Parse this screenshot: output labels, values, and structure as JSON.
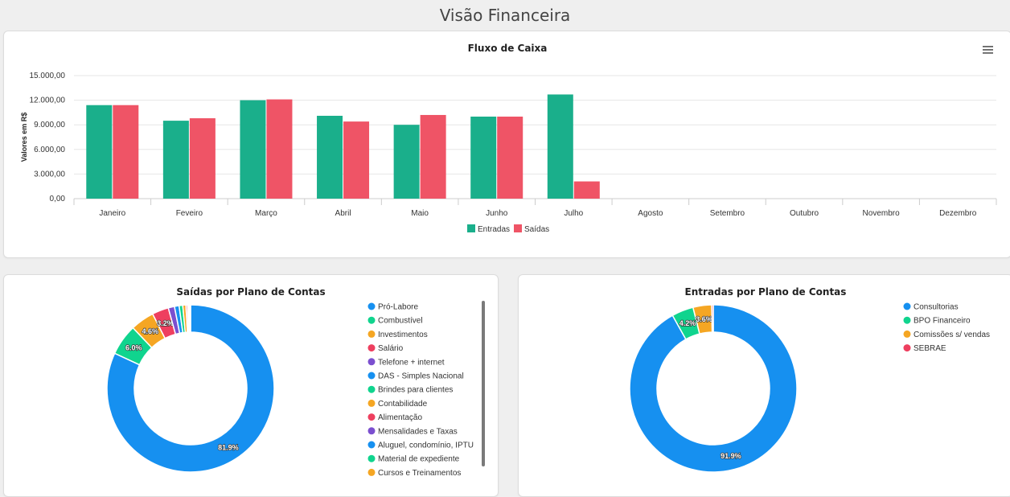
{
  "page": {
    "title": "Visão Financeira"
  },
  "colors": {
    "green": "#1aaf8b",
    "red": "#ef5466",
    "blue": "#1690f0",
    "teal": "#10d48e",
    "orange": "#f5a623",
    "pink": "#ee3f5f",
    "purple": "#7b4fcf",
    "grid": "#e6e6e6",
    "axis": "#cccccc"
  },
  "chart_data": [
    {
      "type": "bar",
      "title": "Fluxo de Caixa",
      "ylabel": "Valores em R$",
      "xlabel": "",
      "ylim": [
        0,
        15000
      ],
      "ytick_labels": [
        "0,00",
        "3.000,00",
        "6.000,00",
        "9.000,00",
        "12.000,00",
        "15.000,00"
      ],
      "categories": [
        "Janeiro",
        "Feveiro",
        "Março",
        "Abril",
        "Maio",
        "Junho",
        "Julho",
        "Agosto",
        "Setembro",
        "Outubro",
        "Novembro",
        "Dezembro"
      ],
      "series": [
        {
          "name": "Entradas",
          "color": "#1aaf8b",
          "values": [
            11400,
            9500,
            12000,
            10100,
            9000,
            10000,
            12700,
            0,
            0,
            0,
            0,
            0
          ]
        },
        {
          "name": "Saídas",
          "color": "#ef5466",
          "values": [
            11400,
            9800,
            12100,
            9400,
            10200,
            10000,
            2100,
            0,
            0,
            0,
            0,
            0
          ]
        }
      ],
      "legend_position": "bottom",
      "grid": true,
      "menu_icon": "hamburger-menu-icon"
    },
    {
      "type": "pie",
      "donut": true,
      "title": "Saídas por Plano de Contas",
      "legend_position": "right",
      "slices": [
        {
          "label": "Pró-Labore",
          "value": 81.9,
          "color": "#1690f0",
          "show_label": "81.9%"
        },
        {
          "label": "Combustível",
          "value": 6.0,
          "color": "#10d48e",
          "show_label": "6.0%"
        },
        {
          "label": "Investimentos",
          "value": 4.6,
          "color": "#f5a623",
          "show_label": "4.6%"
        },
        {
          "label": "Salário",
          "value": 3.2,
          "color": "#ee3f5f",
          "show_label": "3.2%"
        },
        {
          "label": "Telefone + internet",
          "value": 1.2,
          "color": "#7b4fcf",
          "show_label": ""
        },
        {
          "label": "DAS - Simples Nacional",
          "value": 0.9,
          "color": "#1690f0",
          "show_label": ""
        },
        {
          "label": "Brindes para clientes",
          "value": 0.7,
          "color": "#10d48e",
          "show_label": ""
        },
        {
          "label": "Contabilidade",
          "value": 0.6,
          "color": "#f5a623",
          "show_label": ""
        },
        {
          "label": "Alimentação",
          "value": 0.3,
          "color": "#ee3f5f",
          "show_label": ""
        },
        {
          "label": "Mensalidades e Taxas",
          "value": 0.2,
          "color": "#7b4fcf",
          "show_label": ""
        },
        {
          "label": "Aluguel, condomínio, IPTU",
          "value": 0.2,
          "color": "#1690f0",
          "show_label": ""
        },
        {
          "label": "Material de expediente",
          "value": 0.1,
          "color": "#10d48e",
          "show_label": ""
        },
        {
          "label": "Cursos e Treinamentos",
          "value": 0.1,
          "color": "#f5a623",
          "show_label": ""
        }
      ]
    },
    {
      "type": "pie",
      "donut": true,
      "title": "Entradas por Plano de Contas",
      "legend_position": "right",
      "slices": [
        {
          "label": "Consultorias",
          "value": 91.9,
          "color": "#1690f0",
          "show_label": "91.9%"
        },
        {
          "label": "BPO Financeiro",
          "value": 4.2,
          "color": "#10d48e",
          "show_label": "4.2%"
        },
        {
          "label": "Comissões s/ vendas",
          "value": 3.6,
          "color": "#f5a623",
          "show_label": "3.6%"
        },
        {
          "label": "SEBRAE",
          "value": 0.3,
          "color": "#ee3f5f",
          "show_label": ""
        }
      ]
    }
  ]
}
